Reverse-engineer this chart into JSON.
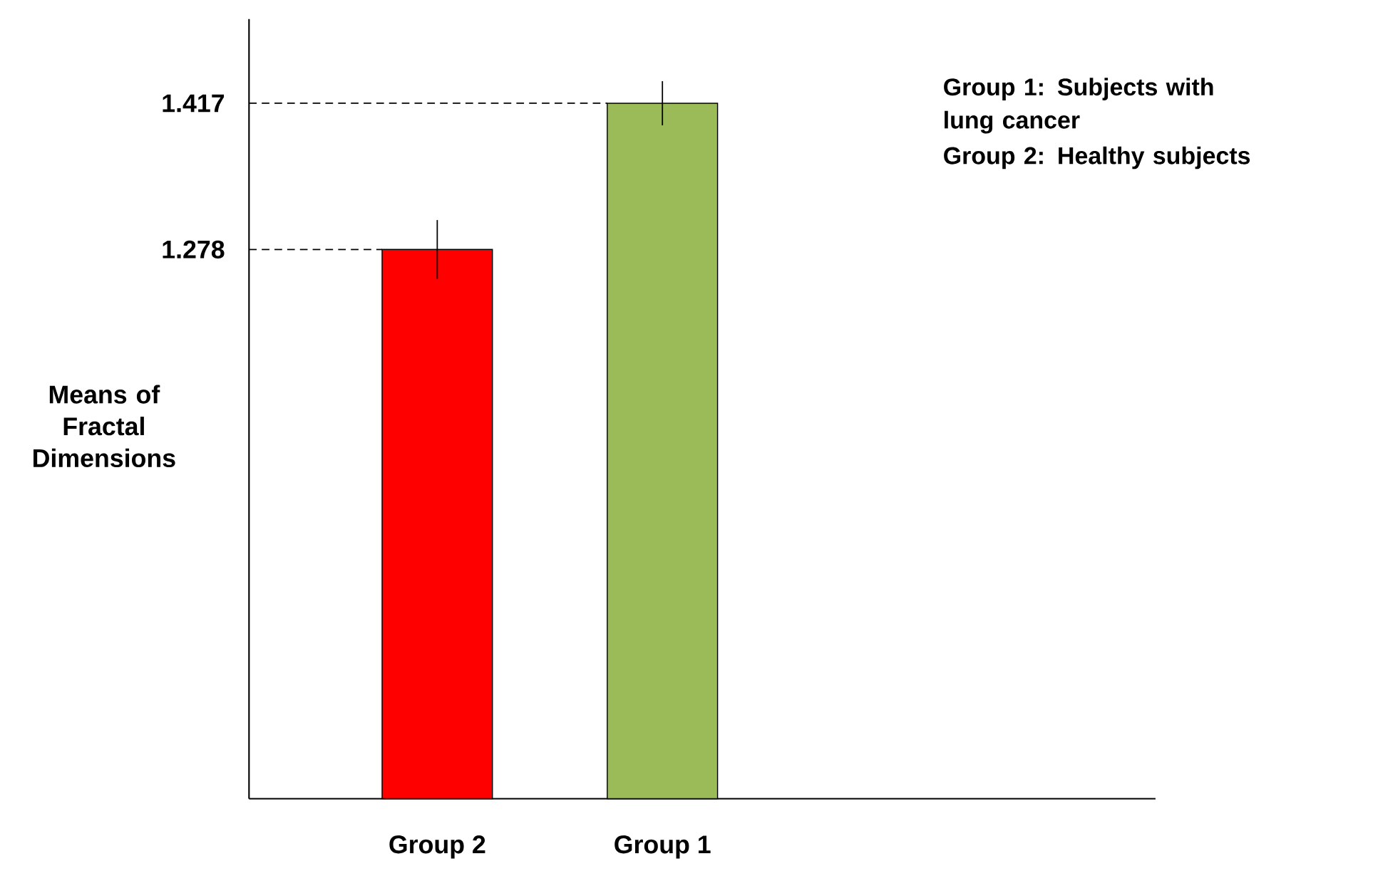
{
  "chart_data": {
    "type": "bar",
    "categories": [
      "Group 2",
      "Group 1"
    ],
    "values": [
      1.278,
      1.417
    ],
    "colors": [
      "#ff0000",
      "#9bbb59"
    ],
    "errors": [
      0.028,
      0.021
    ],
    "ylim": [
      0.756,
      1.497
    ],
    "yticks": [
      1.278,
      1.417
    ],
    "ylabel": "Means of Fractal Dimensions",
    "annotations": [
      "Group 1: Subjects with lung cancer",
      "Group 2: Healthy subjects"
    ],
    "ref_lines": [
      {
        "axis": "y",
        "value": 1.278,
        "line_style": "dashed"
      },
      {
        "axis": "y",
        "value": 1.417,
        "line_style": "dashed"
      }
    ]
  }
}
